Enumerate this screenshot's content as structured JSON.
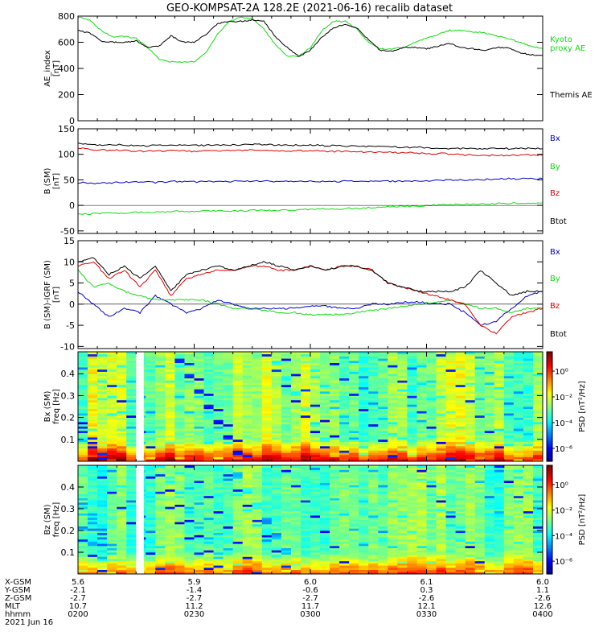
{
  "title": "GEO-KOMPSAT-2A 128.2E (2021-06-16) recalib dataset",
  "colors": {
    "black": "#000000",
    "green": "#11dd11",
    "blue": "#0000cc",
    "red": "#dd0000"
  },
  "chart_data": [
    {
      "id": "ae",
      "type": "line",
      "ylabel_lines": [
        "AE_index",
        "[nT]"
      ],
      "ylim": [
        0,
        800
      ],
      "yticks": [
        0,
        200,
        400,
        600,
        800
      ],
      "x": [
        0,
        3,
        6,
        9,
        12,
        15,
        18,
        21,
        24,
        27,
        30,
        33,
        36,
        39,
        42,
        45,
        48,
        51,
        54,
        57,
        60,
        63,
        66,
        69,
        72,
        75,
        78,
        81,
        84,
        87,
        90,
        93,
        96,
        99,
        102,
        105,
        108,
        111,
        114,
        117,
        120
      ],
      "series": [
        {
          "name": "Kyoto proxy AE",
          "label_lines": [
            "Kyoto",
            "proxy AE"
          ],
          "color": "green",
          "values": [
            795,
            770,
            690,
            640,
            645,
            630,
            560,
            470,
            450,
            450,
            450,
            520,
            660,
            760,
            790,
            780,
            700,
            580,
            495,
            490,
            560,
            690,
            760,
            760,
            700,
            600,
            550,
            550,
            560,
            600,
            630,
            660,
            690,
            690,
            680,
            670,
            650,
            630,
            600,
            570,
            550
          ]
        },
        {
          "name": "Themis AE",
          "label_lines": [
            "Themis AE"
          ],
          "color": "black",
          "values": [
            690,
            670,
            610,
            600,
            600,
            610,
            560,
            570,
            650,
            600,
            600,
            660,
            740,
            760,
            760,
            770,
            760,
            640,
            560,
            490,
            540,
            640,
            710,
            740,
            710,
            620,
            540,
            530,
            560,
            560,
            550,
            570,
            590,
            560,
            550,
            540,
            560,
            560,
            520,
            505,
            500
          ]
        }
      ]
    },
    {
      "id": "b",
      "type": "line",
      "ylabel_lines": [
        "B (SM)",
        "[nT]"
      ],
      "ylim": [
        -55,
        150
      ],
      "yticks": [
        -50,
        0,
        50,
        100,
        150
      ],
      "x": [
        0,
        5,
        10,
        15,
        20,
        25,
        30,
        35,
        40,
        45,
        50,
        55,
        60,
        65,
        70,
        75,
        80,
        85,
        90,
        95,
        100,
        105,
        110,
        115,
        120
      ],
      "series": [
        {
          "name": "Bx",
          "color": "blue",
          "values": [
            45,
            43,
            45,
            46,
            45,
            47,
            46,
            47,
            47,
            48,
            47,
            47,
            47,
            47,
            47,
            47,
            47,
            47,
            48,
            49,
            50,
            51,
            52,
            52,
            52
          ]
        },
        {
          "name": "By",
          "color": "green",
          "values": [
            -18,
            -16,
            -15,
            -14,
            -13,
            -12,
            -12,
            -11,
            -11,
            -10,
            -10,
            -9,
            -8,
            -7,
            -6,
            -5,
            -3,
            -2,
            -1,
            1,
            2,
            3,
            4,
            5,
            5
          ]
        },
        {
          "name": "Bz",
          "color": "red",
          "values": [
            112,
            108,
            108,
            106,
            106,
            107,
            106,
            107,
            107,
            108,
            108,
            107,
            107,
            106,
            105,
            104,
            104,
            103,
            102,
            101,
            99,
            98,
            98,
            99,
            98
          ]
        },
        {
          "name": "Btot",
          "color": "black",
          "values": [
            122,
            118,
            119,
            117,
            117,
            118,
            117,
            118,
            118,
            119,
            119,
            118,
            118,
            117,
            116,
            116,
            115,
            114,
            113,
            112,
            111,
            111,
            111,
            112,
            111
          ]
        }
      ]
    },
    {
      "id": "db",
      "type": "line",
      "ylabel_lines": [
        "B (SM)-IGRF (SM)",
        "[nT]"
      ],
      "ylim": [
        -10.5,
        15
      ],
      "yticks": [
        -10,
        -5,
        0,
        5,
        10,
        15
      ],
      "x": [
        0,
        4,
        8,
        12,
        16,
        20,
        24,
        28,
        32,
        36,
        40,
        44,
        48,
        52,
        56,
        60,
        64,
        68,
        72,
        76,
        80,
        84,
        88,
        92,
        96,
        100,
        104,
        108,
        112,
        116,
        120
      ],
      "series": [
        {
          "name": "Bx",
          "color": "blue",
          "values": [
            3,
            0,
            -3,
            -1,
            -2,
            2,
            0,
            -2,
            -1,
            1,
            0,
            -1,
            -1,
            -1,
            -1,
            -0.5,
            -0.5,
            -1,
            -1,
            0,
            0,
            0.5,
            0.5,
            0,
            0,
            -2,
            -5,
            -4,
            -1,
            2,
            3
          ]
        },
        {
          "name": "By",
          "color": "green",
          "values": [
            8,
            4,
            5,
            3,
            2,
            1,
            1,
            1,
            1,
            0,
            -1,
            -1,
            -1.5,
            -2,
            -2,
            -2.5,
            -2.5,
            -2.5,
            -2,
            -1.5,
            -1,
            -0.5,
            0,
            0.5,
            1,
            0,
            -1,
            -1,
            -2,
            -1,
            -1
          ]
        },
        {
          "name": "Bz",
          "color": "red",
          "values": [
            9,
            10,
            6,
            8,
            4,
            8,
            2,
            6,
            7,
            8,
            8,
            9,
            9,
            8,
            8,
            9,
            8,
            9,
            9,
            8,
            5,
            4,
            3,
            2,
            1,
            0,
            -5,
            -7,
            -3,
            -2,
            -1
          ]
        },
        {
          "name": "Btot",
          "color": "black",
          "values": [
            10,
            11,
            7,
            9,
            6,
            9,
            3,
            7,
            8,
            9,
            8,
            9,
            10,
            9,
            8,
            9,
            8,
            9,
            9,
            8,
            5,
            4,
            3,
            3,
            3,
            4,
            8,
            5,
            2,
            3,
            3
          ]
        }
      ]
    },
    {
      "id": "spec_bx",
      "type": "heatmap",
      "ylabel_lines": [
        "Bx (SM)",
        "freq [Hz]"
      ],
      "ylim": [
        0,
        0.5
      ],
      "yticks": [
        0.1,
        0.2,
        0.3,
        0.4
      ],
      "colorbar": {
        "label": "PSD [nT²/Hz]",
        "ticks": [
          "10⁰",
          "10⁻²",
          "10⁻⁴",
          "10⁻⁶"
        ],
        "tick_exponents": [
          0,
          -2,
          -4,
          -6
        ],
        "range": [
          -7,
          1.5
        ]
      },
      "gap_minutes": [
        15,
        17
      ]
    },
    {
      "id": "spec_bz",
      "type": "heatmap",
      "ylabel_lines": [
        "Bz (SM)",
        "freq [Hz]"
      ],
      "ylim": [
        0,
        0.5
      ],
      "yticks": [
        0.1,
        0.2,
        0.3,
        0.4
      ],
      "colorbar": {
        "label": "PSD [nT²/Hz]",
        "ticks": [
          "10⁰",
          "10⁻²",
          "10⁻⁴",
          "10⁻⁶"
        ],
        "tick_exponents": [
          0,
          -2,
          -4,
          -6
        ],
        "range": [
          -7,
          1.5
        ]
      },
      "gap_minutes": [
        15,
        17
      ]
    }
  ],
  "x_axis": {
    "range_minutes": [
      0,
      120
    ],
    "tick_minutes": [
      0,
      30,
      60,
      90,
      120
    ],
    "minor_tick_minutes": [
      5,
      10,
      15,
      20,
      25,
      35,
      40,
      45,
      50,
      55,
      65,
      70,
      75,
      80,
      85,
      95,
      100,
      105,
      110,
      115
    ],
    "rows": [
      {
        "label": "X-GSM",
        "values": [
          "5.6",
          "5.9",
          "6.0",
          "6.1",
          "6.0"
        ]
      },
      {
        "label": "Y-GSM",
        "values": [
          "-2.1",
          "-1.4",
          "-0.6",
          "0.3",
          "1.1"
        ]
      },
      {
        "label": "Z-GSM",
        "values": [
          "-2.7",
          "-2.7",
          "-2.7",
          "-2.6",
          "-2.6"
        ]
      },
      {
        "label": "MLT",
        "values": [
          "10.7",
          "11.2",
          "11.7",
          "12.1",
          "12.6"
        ]
      },
      {
        "label": "hhmm",
        "values": [
          "0200",
          "0230",
          "0300",
          "0330",
          "0400"
        ]
      }
    ],
    "date_label": "2021 Jun 16"
  }
}
